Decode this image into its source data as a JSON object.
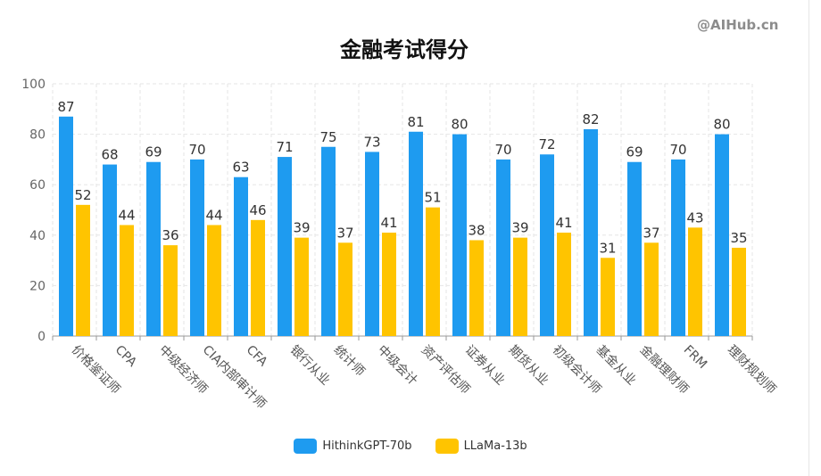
{
  "watermark": "@AIHub.cn",
  "colors": {
    "series1": "#1e9bf0",
    "series2": "#ffc400",
    "grid": "#e6e6e6",
    "axis": "#999999"
  },
  "chart_data": {
    "type": "bar",
    "title": "金融考试得分",
    "categories": [
      "价格鉴证师",
      "CPA",
      "中级经济师",
      "CIA内部审计师",
      "CFA",
      "银行从业",
      "统计师",
      "中级会计",
      "资产评估师",
      "证券从业",
      "期货从业",
      "初级会计师",
      "基金从业",
      "金融理财师",
      "FRM",
      "理财规划师"
    ],
    "series": [
      {
        "name": "HithinkGPT-70b",
        "values": [
          87,
          68,
          69,
          70,
          63,
          71,
          75,
          73,
          81,
          80,
          70,
          72,
          82,
          69,
          70,
          80
        ]
      },
      {
        "name": "LLaMa-13b",
        "values": [
          52,
          44,
          36,
          44,
          46,
          39,
          37,
          41,
          51,
          38,
          39,
          41,
          31,
          37,
          43,
          35
        ]
      }
    ],
    "ylim": [
      0,
      100
    ],
    "yticks": [
      0,
      20,
      40,
      60,
      80,
      100
    ],
    "grid": true,
    "legend": "bottom",
    "data_labels": true
  }
}
